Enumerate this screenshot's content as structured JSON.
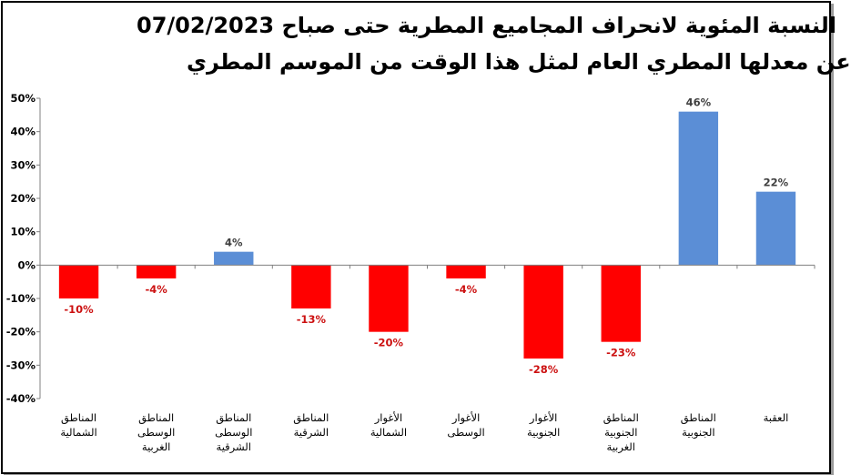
{
  "chart_data": {
    "type": "bar",
    "title": "النسبة المئوية لانحراف المجاميع المطرية حتى صباح 07/02/2023",
    "subtitle": "عن معدلها المطري العام لمثل هذا الوقت من الموسم المطري",
    "ylim": [
      -40,
      50
    ],
    "yticks": [
      50,
      40,
      30,
      20,
      10,
      0,
      -10,
      -20,
      -30,
      -40
    ],
    "ytick_labels": [
      "50%",
      "40%",
      "30%",
      "20%",
      "10%",
      "0%",
      "-10%",
      "-20%",
      "-30%",
      "-40%"
    ],
    "grid": false,
    "categories": [
      [
        "المناطق",
        "الشمالية"
      ],
      [
        "المناطق",
        "الوسطى",
        "الغربية"
      ],
      [
        "المناطق",
        "الوسطى",
        "الشرقية"
      ],
      [
        "المناطق",
        "الشرقية"
      ],
      [
        "الأغوار",
        "الشمالية"
      ],
      [
        "الأغوار",
        "الوسطى"
      ],
      [
        "الأغوار",
        "الجنوبية"
      ],
      [
        "المناطق",
        "الجنوبية",
        "الغربية"
      ],
      [
        "المناطق",
        "الجنوبية"
      ],
      [
        "العقبة"
      ]
    ],
    "values": [
      -10,
      -4,
      4,
      -13,
      -20,
      -4,
      -28,
      -23,
      46,
      22
    ],
    "value_labels": [
      "-10%",
      "-4%",
      "4%",
      "-13%",
      "-20%",
      "-4%",
      "-28%",
      "-23%",
      "46%",
      "22%"
    ],
    "colors": {
      "positive_bar": "#5b8ed6",
      "negative_bar": "#ff0000",
      "positive_label": "#404040",
      "negative_label": "#cc1111"
    }
  }
}
